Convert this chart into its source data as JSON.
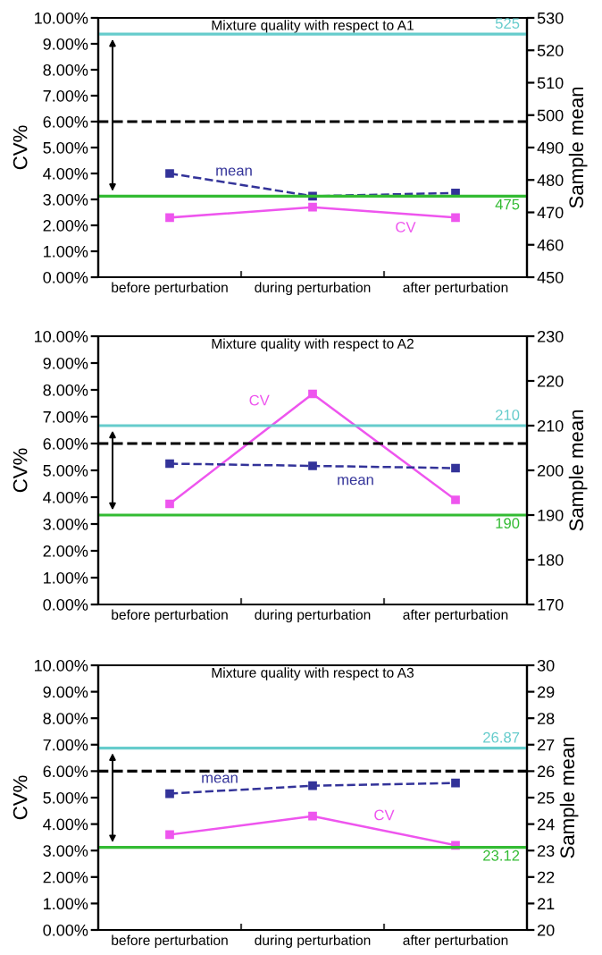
{
  "chart_data": [
    {
      "type": "line",
      "title": "Mixture quality with respect to A1",
      "ylabel": "CV%",
      "y2label": "Sample mean",
      "categories": [
        "before perturbation",
        "during perturbation",
        "after perturbation"
      ],
      "series": [
        {
          "name": "mean",
          "color": "#333399",
          "values": [
            482,
            475,
            476
          ],
          "axis": "y2",
          "line_style": "dashed"
        },
        {
          "name": "CV",
          "color": "#ee55ee",
          "values": [
            2.3,
            2.7,
            2.3
          ],
          "line_style": "solid"
        }
      ],
      "ylim": [
        0,
        10
      ],
      "yticks": [
        {
          "value": 0,
          "label": "0.00%"
        },
        {
          "value": 1,
          "label": "1.00%"
        },
        {
          "value": 2,
          "label": "2.00%"
        },
        {
          "value": 3,
          "label": "3.00%"
        },
        {
          "value": 4,
          "label": "4.00%"
        },
        {
          "value": 5,
          "label": "5.00%"
        },
        {
          "value": 6,
          "label": "6.00%"
        },
        {
          "value": 7,
          "label": "7.00%"
        },
        {
          "value": 8,
          "label": "8.00%"
        },
        {
          "value": 9,
          "label": "9.00%"
        },
        {
          "value": 10,
          "label": "10.00%"
        }
      ],
      "y2lim": [
        450,
        530
      ],
      "y2ticks": [
        450,
        460,
        470,
        480,
        490,
        500,
        510,
        520,
        530
      ],
      "ref_lines": [
        {
          "axis": "y2",
          "value": 525,
          "label": "525",
          "color": "#66cccc",
          "line_style": "solid"
        },
        {
          "axis": "y2",
          "value": 475,
          "label": "475",
          "color": "#33bb33",
          "line_style": "solid"
        },
        {
          "axis": "y",
          "value": 6,
          "color": "#000000",
          "line_style": "dashed"
        }
      ],
      "marker": "square",
      "grid": false
    },
    {
      "type": "line",
      "title": "Mixture quality with respect to A2",
      "ylabel": "CV%",
      "y2label": "Sample mean",
      "categories": [
        "before perturbation",
        "during perturbation",
        "after perturbation"
      ],
      "series": [
        {
          "name": "mean",
          "color": "#333399",
          "values": [
            201.5,
            201,
            200.5
          ],
          "axis": "y2",
          "line_style": "dashed"
        },
        {
          "name": "CV",
          "color": "#ee55ee",
          "values": [
            3.75,
            7.85,
            3.9
          ],
          "line_style": "solid"
        }
      ],
      "ylim": [
        0,
        10
      ],
      "yticks": [
        {
          "value": 0,
          "label": "0.00%"
        },
        {
          "value": 1,
          "label": "1.00%"
        },
        {
          "value": 2,
          "label": "2.00%"
        },
        {
          "value": 3,
          "label": "3.00%"
        },
        {
          "value": 4,
          "label": "4.00%"
        },
        {
          "value": 5,
          "label": "5.00%"
        },
        {
          "value": 6,
          "label": "6.00%"
        },
        {
          "value": 7,
          "label": "7.00%"
        },
        {
          "value": 8,
          "label": "8.00%"
        },
        {
          "value": 9,
          "label": "9.00%"
        },
        {
          "value": 10,
          "label": "10.00%"
        }
      ],
      "y2lim": [
        170,
        230
      ],
      "y2ticks": [
        170,
        180,
        190,
        200,
        210,
        220,
        230
      ],
      "ref_lines": [
        {
          "axis": "y2",
          "value": 210,
          "label": "210",
          "color": "#66cccc",
          "line_style": "solid"
        },
        {
          "axis": "y2",
          "value": 190,
          "label": "190",
          "color": "#33bb33",
          "line_style": "solid"
        },
        {
          "axis": "y",
          "value": 6,
          "color": "#000000",
          "line_style": "dashed"
        }
      ],
      "marker": "square",
      "grid": false
    },
    {
      "type": "line",
      "title": "Mixture quality with respect to A3",
      "ylabel": "CV%",
      "y2label": "Sample mean",
      "categories": [
        "before perturbation",
        "during perturbation",
        "after perturbation"
      ],
      "series": [
        {
          "name": "mean",
          "color": "#333399",
          "values": [
            25.15,
            25.45,
            25.55
          ],
          "axis": "y2",
          "line_style": "dashed"
        },
        {
          "name": "CV",
          "color": "#ee55ee",
          "values": [
            3.6,
            4.3,
            3.2
          ],
          "line_style": "solid"
        }
      ],
      "ylim": [
        0,
        10
      ],
      "yticks": [
        {
          "value": 0,
          "label": "0.00%"
        },
        {
          "value": 1,
          "label": "1.00%"
        },
        {
          "value": 2,
          "label": "2.00%"
        },
        {
          "value": 3,
          "label": "3.00%"
        },
        {
          "value": 4,
          "label": "4.00%"
        },
        {
          "value": 5,
          "label": "5.00%"
        },
        {
          "value": 6,
          "label": "6.00%"
        },
        {
          "value": 7,
          "label": "7.00%"
        },
        {
          "value": 8,
          "label": "8.00%"
        },
        {
          "value": 9,
          "label": "9.00%"
        },
        {
          "value": 10,
          "label": "10.00%"
        }
      ],
      "y2lim": [
        20,
        30
      ],
      "y2ticks": [
        20,
        21,
        22,
        23,
        24,
        25,
        26,
        27,
        28,
        29,
        30
      ],
      "ref_lines": [
        {
          "axis": "y2",
          "value": 26.87,
          "label": "26.87",
          "color": "#66cccc",
          "line_style": "solid"
        },
        {
          "axis": "y2",
          "value": 23.12,
          "label": "23.12",
          "color": "#33bb33",
          "line_style": "solid"
        },
        {
          "axis": "y",
          "value": 6,
          "color": "#000000",
          "line_style": "dashed"
        }
      ],
      "marker": "square",
      "grid": false
    }
  ]
}
